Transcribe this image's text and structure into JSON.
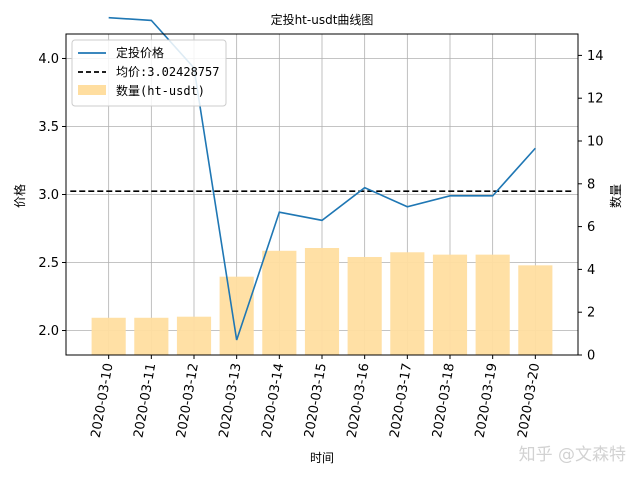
{
  "chart_data": {
    "type": "bar+line",
    "title": "定投ht-usdt曲线图",
    "xlabel": "时间",
    "ylabel_left": "价格",
    "ylabel_right": "数量",
    "categories": [
      "2020-03-10",
      "2020-03-11",
      "2020-03-12",
      "2020-03-13",
      "2020-03-14",
      "2020-03-15",
      "2020-03-16",
      "2020-03-17",
      "2020-03-18",
      "2020-03-19",
      "2020-03-20"
    ],
    "series": [
      {
        "name": "定投价格",
        "axis": "left",
        "type": "line",
        "color": "#1f77b4",
        "values": [
          4.3,
          4.28,
          3.93,
          1.93,
          2.87,
          2.81,
          3.05,
          2.91,
          2.99,
          2.99,
          3.34
        ]
      },
      {
        "name": "均价:3.02428757",
        "axis": "left",
        "type": "hline",
        "color": "#000000",
        "value": 3.02428757
      },
      {
        "name": "数量(ht-usdt)",
        "axis": "right",
        "type": "bar",
        "color": "#ffdea0",
        "values": [
          1.74,
          1.74,
          1.79,
          3.66,
          4.87,
          5.0,
          4.58,
          4.8,
          4.69,
          4.69,
          4.19
        ]
      }
    ],
    "ylim_left": [
      1.82,
      4.18
    ],
    "ylim_right": [
      0,
      15
    ],
    "yticks_left": [
      "2.0",
      "2.5",
      "3.0",
      "3.5",
      "4.0"
    ],
    "yticks_right": [
      "0",
      "2",
      "4",
      "6",
      "8",
      "10",
      "12",
      "14"
    ],
    "grid": true,
    "legend_position": "upper-left"
  },
  "watermark": "知乎 @文森特"
}
